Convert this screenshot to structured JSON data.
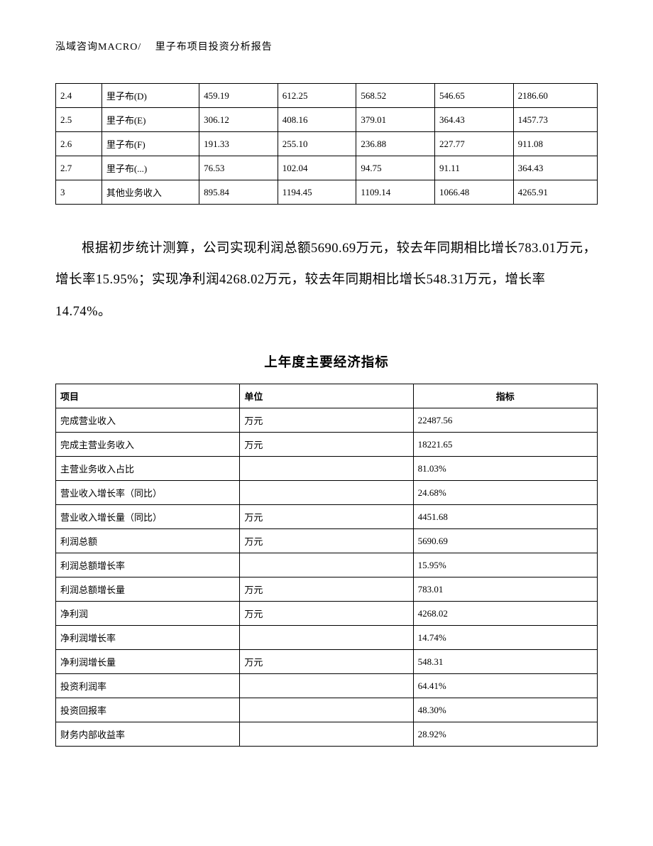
{
  "header": {
    "text": "泓域咨询MACRO/　 里子布项目投资分析报告"
  },
  "table1": {
    "col_widths_pct": [
      8.5,
      18,
      14.5,
      14.5,
      14.5,
      14.5,
      15.5
    ],
    "border_color": "#000000",
    "font_size": 13,
    "rows": [
      [
        "2.4",
        "里子布(D)",
        "459.19",
        "612.25",
        "568.52",
        "546.65",
        "2186.60"
      ],
      [
        "2.5",
        "里子布(E)",
        "306.12",
        "408.16",
        "379.01",
        "364.43",
        "1457.73"
      ],
      [
        "2.6",
        "里子布(F)",
        "191.33",
        "255.10",
        "236.88",
        "227.77",
        "911.08"
      ],
      [
        "2.7",
        "里子布(...)",
        "76.53",
        "102.04",
        "94.75",
        "91.11",
        "364.43"
      ],
      [
        "3",
        "其他业务收入",
        "895.84",
        "1194.45",
        "1109.14",
        "1066.48",
        "4265.91"
      ]
    ]
  },
  "paragraph": {
    "text": "根据初步统计测算，公司实现利润总额5690.69万元，较去年同期相比增长783.01万元，增长率15.95%；实现净利润4268.02万元，较去年同期相比增长548.31万元，增长率14.74%。",
    "font_size": 18.5,
    "line_height": 2.4
  },
  "section_title": {
    "text": "上年度主要经济指标",
    "font_size": 18.5,
    "font_weight": "bold"
  },
  "table2": {
    "col_widths_pct": [
      34,
      32,
      34
    ],
    "border_color": "#000000",
    "font_size": 13,
    "header": [
      "项目",
      "单位",
      "指标"
    ],
    "rows": [
      [
        "完成营业收入",
        "万元",
        "22487.56"
      ],
      [
        "完成主营业务收入",
        "万元",
        "18221.65"
      ],
      [
        "主营业务收入占比",
        "",
        "81.03%"
      ],
      [
        "营业收入增长率（同比）",
        "",
        "24.68%"
      ],
      [
        "营业收入增长量（同比）",
        "万元",
        "4451.68"
      ],
      [
        "利润总额",
        "万元",
        "5690.69"
      ],
      [
        "利润总额增长率",
        "",
        "15.95%"
      ],
      [
        "利润总额增长量",
        "万元",
        "783.01"
      ],
      [
        "净利润",
        "万元",
        "4268.02"
      ],
      [
        "净利润增长率",
        "",
        "14.74%"
      ],
      [
        "净利润增长量",
        "万元",
        "548.31"
      ],
      [
        "投资利润率",
        "",
        "64.41%"
      ],
      [
        "投资回报率",
        "",
        "48.30%"
      ],
      [
        "财务内部收益率",
        "",
        "28.92%"
      ]
    ]
  },
  "colors": {
    "background": "#ffffff",
    "text": "#000000",
    "border": "#000000"
  }
}
